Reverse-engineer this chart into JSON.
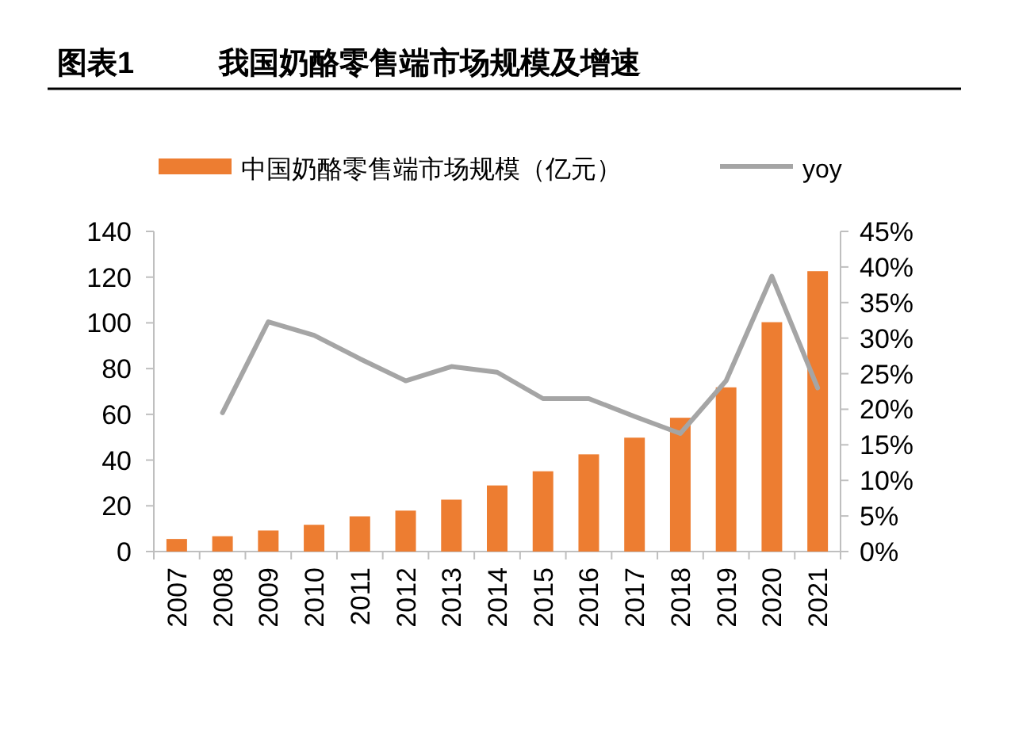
{
  "chart_data": {
    "type": "bar",
    "title": "图表1",
    "subtitle": "我国奶酪零售端市场规模及增速",
    "categories": [
      "2007",
      "2008",
      "2009",
      "2010",
      "2011",
      "2012",
      "2013",
      "2014",
      "2015",
      "2016",
      "2017",
      "2018",
      "2019",
      "2020",
      "2021"
    ],
    "series": [
      {
        "name": "中国奶酪零售端市场规模（亿元）",
        "color": "#ed7d31",
        "values": [
          5.5,
          6.7,
          9.2,
          11.7,
          15.4,
          17.9,
          22.7,
          28.9,
          35.1,
          42.5,
          49.8,
          58.5,
          71.8,
          100.3,
          122.6
        ]
      },
      {
        "name": "yoy",
        "type": "line",
        "axis": "y2",
        "color": "#a5a5a5",
        "values": [
          null,
          19.5,
          32.3,
          30.4,
          27.1,
          24.0,
          26.0,
          25.2,
          21.5,
          21.5,
          19.0,
          16.6,
          24.0,
          38.7,
          23.0
        ]
      }
    ],
    "ylim": [
      0,
      140
    ],
    "yticks": [
      0,
      20,
      40,
      60,
      80,
      100,
      120,
      140
    ],
    "y2lim": [
      0,
      45
    ],
    "y2ticks": [
      {
        "value": 0,
        "label": "0%"
      },
      {
        "value": 5,
        "label": "5%"
      },
      {
        "value": 10,
        "label": "10%"
      },
      {
        "value": 15,
        "label": "15%"
      },
      {
        "value": 20,
        "label": "20%"
      },
      {
        "value": 25,
        "label": "25%"
      },
      {
        "value": 30,
        "label": "30%"
      },
      {
        "value": 35,
        "label": "35%"
      },
      {
        "value": 40,
        "label": "40%"
      },
      {
        "value": 45,
        "label": "45%"
      }
    ],
    "legend": "top"
  }
}
